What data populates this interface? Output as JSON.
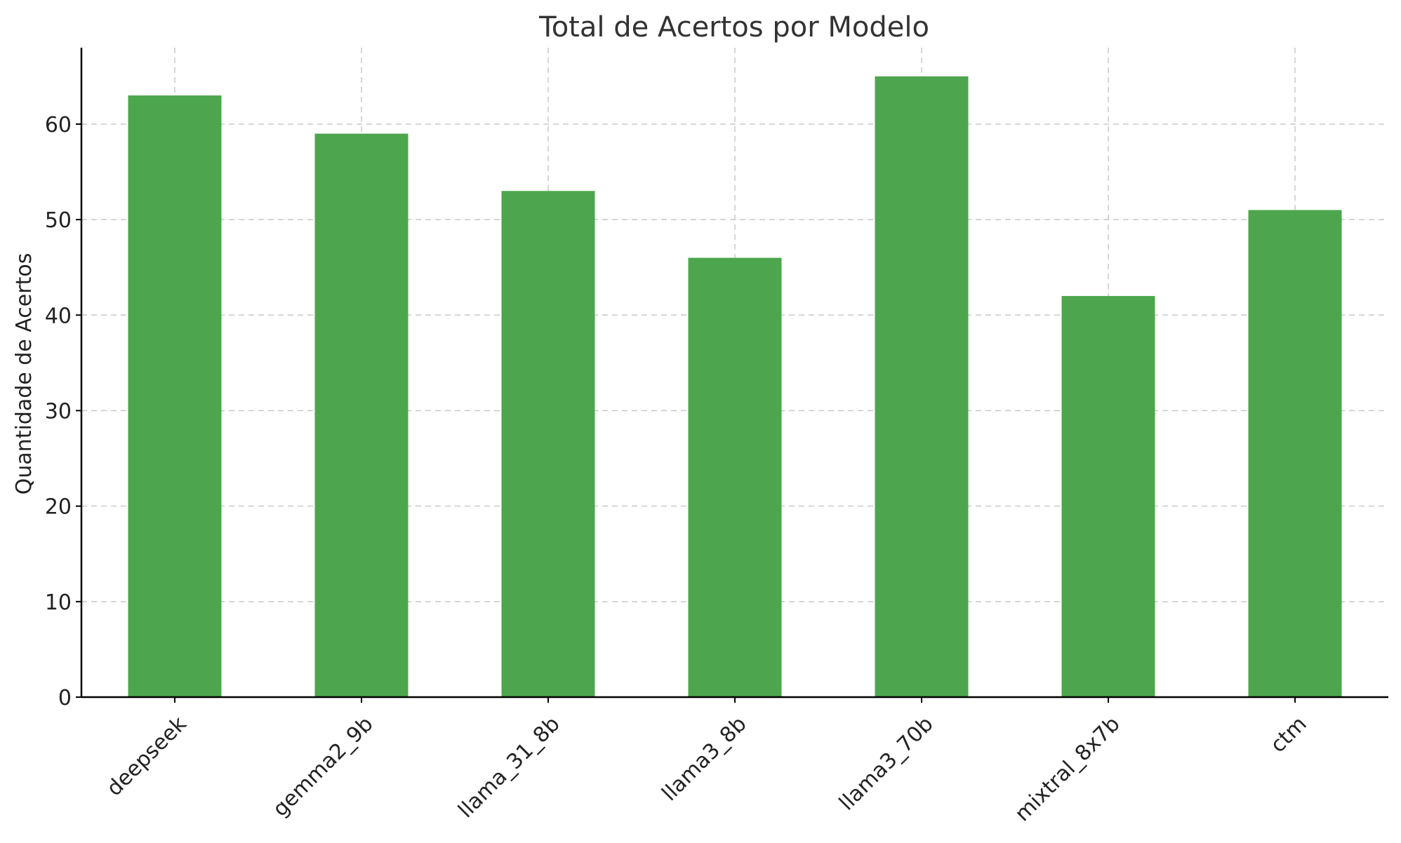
{
  "chart_data": {
    "type": "bar",
    "title": "Total de Acertos por Modelo",
    "xlabel": "",
    "ylabel": "Quantidade de Acertos",
    "categories": [
      "deepseek",
      "gemma2_9b",
      "llama_31_8b",
      "llama3_8b",
      "llama3_70b",
      "mixtral_8x7b",
      "ctm"
    ],
    "values": [
      63,
      59,
      53,
      46,
      65,
      42,
      51
    ],
    "ylim": [
      0,
      68
    ],
    "yticks": [
      0,
      10,
      20,
      30,
      40,
      50,
      60
    ],
    "grid": true,
    "bar_color": "#4da64d"
  }
}
